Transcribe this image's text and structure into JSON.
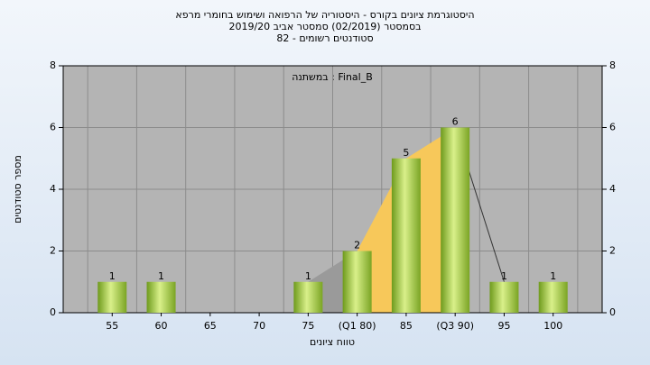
{
  "chart_data": {
    "type": "bar",
    "title": "היסטוגרמת ציונים בקורס - היסטוריה של הרפואה ושימוש בחומרי מרפא",
    "subtitle": "בסמסטר  (02/2019)  סמסטר אביב 2019/20",
    "subtitle2": "סטודנטים רשומים - 82",
    "annotation": "במשתנה : Final_B",
    "xlabel": "טווח ציונים",
    "ylabel": "מספר סטודנטים",
    "categories": [
      "55",
      "60",
      "65",
      "70",
      "75",
      "(Q1 80)",
      "85",
      "(Q3 90)",
      "95",
      "100"
    ],
    "values": [
      1,
      1,
      0,
      0,
      1,
      2,
      5,
      6,
      1,
      1
    ],
    "color": "#9bc23c",
    "ylim": [
      0,
      8
    ],
    "yticks": [
      0,
      2,
      4,
      6,
      8
    ],
    "y2lim": [
      0,
      8
    ],
    "y2ticks": [
      0,
      2,
      4,
      6,
      8
    ],
    "grid": true
  }
}
